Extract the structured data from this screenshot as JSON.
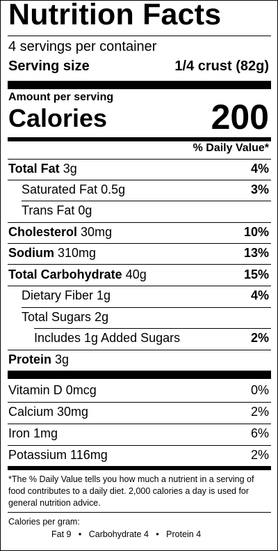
{
  "title": "Nutrition Facts",
  "servings_per_container": "4 servings per container",
  "serving_size_label": "Serving size",
  "serving_size_value": "1/4 crust (82g)",
  "amount_per_serving": "Amount per serving",
  "calories_label": "Calories",
  "calories_value": "200",
  "daily_value_header": "% Daily Value*",
  "nutrients": [
    {
      "name": "Total Fat",
      "amount": "3g",
      "dv": "4%"
    },
    {
      "name": "Saturated Fat",
      "amount": "0.5g",
      "dv": "3%"
    },
    {
      "name": "Trans Fat",
      "amount": "0g",
      "dv": ""
    },
    {
      "name": "Cholesterol",
      "amount": "30mg",
      "dv": "10%"
    },
    {
      "name": "Sodium",
      "amount": "310mg",
      "dv": "13%"
    },
    {
      "name": "Total Carbohydrate",
      "amount": "40g",
      "dv": "15%"
    },
    {
      "name": "Dietary Fiber",
      "amount": "1g",
      "dv": "4%"
    },
    {
      "name": "Total Sugars",
      "amount": "2g",
      "dv": ""
    },
    {
      "name": "Includes 1g Added Sugars",
      "amount": "",
      "dv": "2%"
    },
    {
      "name": "Protein",
      "amount": "3g",
      "dv": ""
    }
  ],
  "vitamins": [
    {
      "name": "Vitamin D 0mcg",
      "dv": "0%"
    },
    {
      "name": "Calcium 30mg",
      "dv": "2%"
    },
    {
      "name": "Iron 1mg",
      "dv": "6%"
    },
    {
      "name": "Potassium 116mg",
      "dv": "2%"
    }
  ],
  "footnote": "*The % Daily Value tells you how much a nutrient in a serving of food contributes to a daily diet. 2,000 calories a day is used for general nutrition advice.",
  "calories_per_gram_label": "Calories per gram:",
  "calories_per_gram": {
    "fat": "Fat 9",
    "carbohydrate": "Carbohydrate 4",
    "protein": "Protein 4",
    "separator": "•"
  }
}
